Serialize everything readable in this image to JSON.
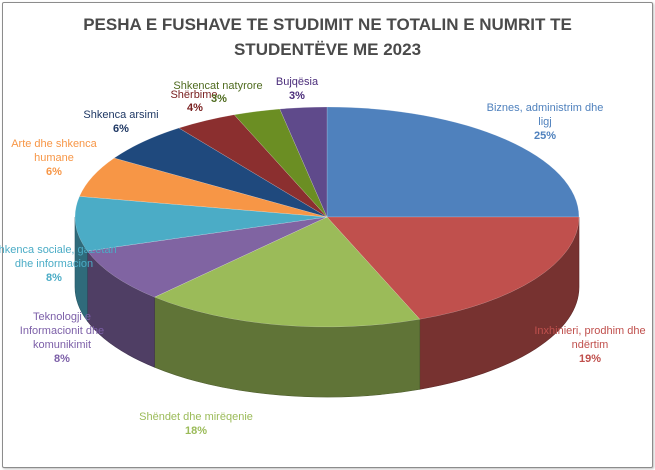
{
  "chart_data": {
    "type": "pie",
    "title_lines": [
      "PESHA E FUSHAVE TE STUDIMIT NE TOTALIN E NUMRIT TE",
      "STUDENTËVE ME 2023"
    ],
    "slices": [
      {
        "label_lines": [
          "Biznes, administrim dhe",
          "ligj"
        ],
        "value": 25,
        "value_text": "25%",
        "color": "#4f81bd"
      },
      {
        "label_lines": [
          "Inxhinieri, prodhim dhe",
          "ndërtim"
        ],
        "value": 19,
        "value_text": "19%",
        "color": "#c0504d"
      },
      {
        "label_lines": [
          "Shëndet dhe mirëqenie"
        ],
        "value": 18,
        "value_text": "18%",
        "color": "#9bbb59"
      },
      {
        "label_lines": [
          "Teknologji e",
          "Informacionit dhe",
          "komunikimit"
        ],
        "value": 8,
        "value_text": "8%",
        "color": "#8064a2"
      },
      {
        "label_lines": [
          "Shkenca sociale, gazetari",
          "dhe  informacion"
        ],
        "value": 8,
        "value_text": "8%",
        "color": "#4bacc6"
      },
      {
        "label_lines": [
          "Arte dhe shkenca",
          "humane"
        ],
        "value": 6,
        "value_text": "6%",
        "color": "#f79646"
      },
      {
        "label_lines": [
          "Shkenca arsimi"
        ],
        "value": 6,
        "value_text": "6%",
        "color": "#1f497d"
      },
      {
        "label_lines": [
          "Shërbime"
        ],
        "value": 4,
        "value_text": "4%",
        "color": "#8b2f2f"
      },
      {
        "label_lines": [
          "Shkencat natyrore"
        ],
        "value": 3,
        "value_text": "3%",
        "color": "#6b8e23"
      },
      {
        "label_lines": [
          "Bujqësia"
        ],
        "value": 3,
        "value_text": "3%",
        "color": "#5f4a8b"
      }
    ]
  }
}
